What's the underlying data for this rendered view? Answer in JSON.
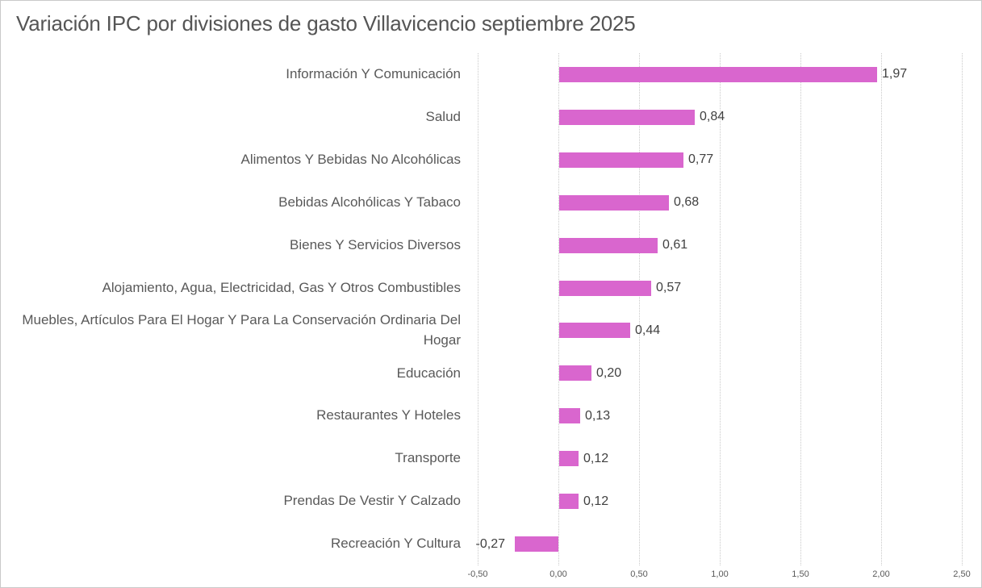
{
  "title": "Variación IPC por divisiones de gasto Villavicencio septiembre 2025",
  "colors": {
    "bar": "#D966CE",
    "gridline": "#C9C9C9",
    "title_text": "#555555",
    "category_text": "#595959",
    "value_text": "#404040",
    "tick_text": "#595959",
    "frame_border": "#C9C9C9",
    "background": "#FFFFFF"
  },
  "chart_data": {
    "type": "bar",
    "orientation": "horizontal",
    "title": "Variación IPC por divisiones de gasto Villavicencio septiembre 2025",
    "categories": [
      "Información Y Comunicación",
      "Salud",
      "Alimentos Y Bebidas No Alcohólicas",
      "Bebidas Alcohólicas Y Tabaco",
      "Bienes Y Servicios Diversos",
      "Alojamiento, Agua, Electricidad, Gas Y Otros Combustibles",
      "Muebles, Artículos Para El Hogar Y Para La Conservación Ordinaria Del Hogar",
      "Educación",
      "Restaurantes Y Hoteles",
      "Transporte",
      "Prendas De Vestir Y Calzado",
      "Recreación Y Cultura"
    ],
    "values": [
      1.97,
      0.84,
      0.77,
      0.68,
      0.61,
      0.57,
      0.44,
      0.2,
      0.13,
      0.12,
      0.12,
      -0.27
    ],
    "value_labels": [
      "1,97",
      "0,84",
      "0,77",
      "0,68",
      "0,61",
      "0,57",
      "0,44",
      "0,20",
      "0,13",
      "0,12",
      "0,12",
      "-0,27"
    ],
    "x_ticks": [
      -0.5,
      0.0,
      0.5,
      1.0,
      1.5,
      2.0,
      2.5
    ],
    "x_tick_labels": [
      "-0,50",
      "0,00",
      "0,50",
      "1,00",
      "1,50",
      "2,00",
      "2,50"
    ],
    "xlabel": "",
    "ylabel": "",
    "xlim": [
      -0.5,
      2.5
    ],
    "grid": "vertical-dotted",
    "legend": "none",
    "data_labels": "outside-end"
  }
}
